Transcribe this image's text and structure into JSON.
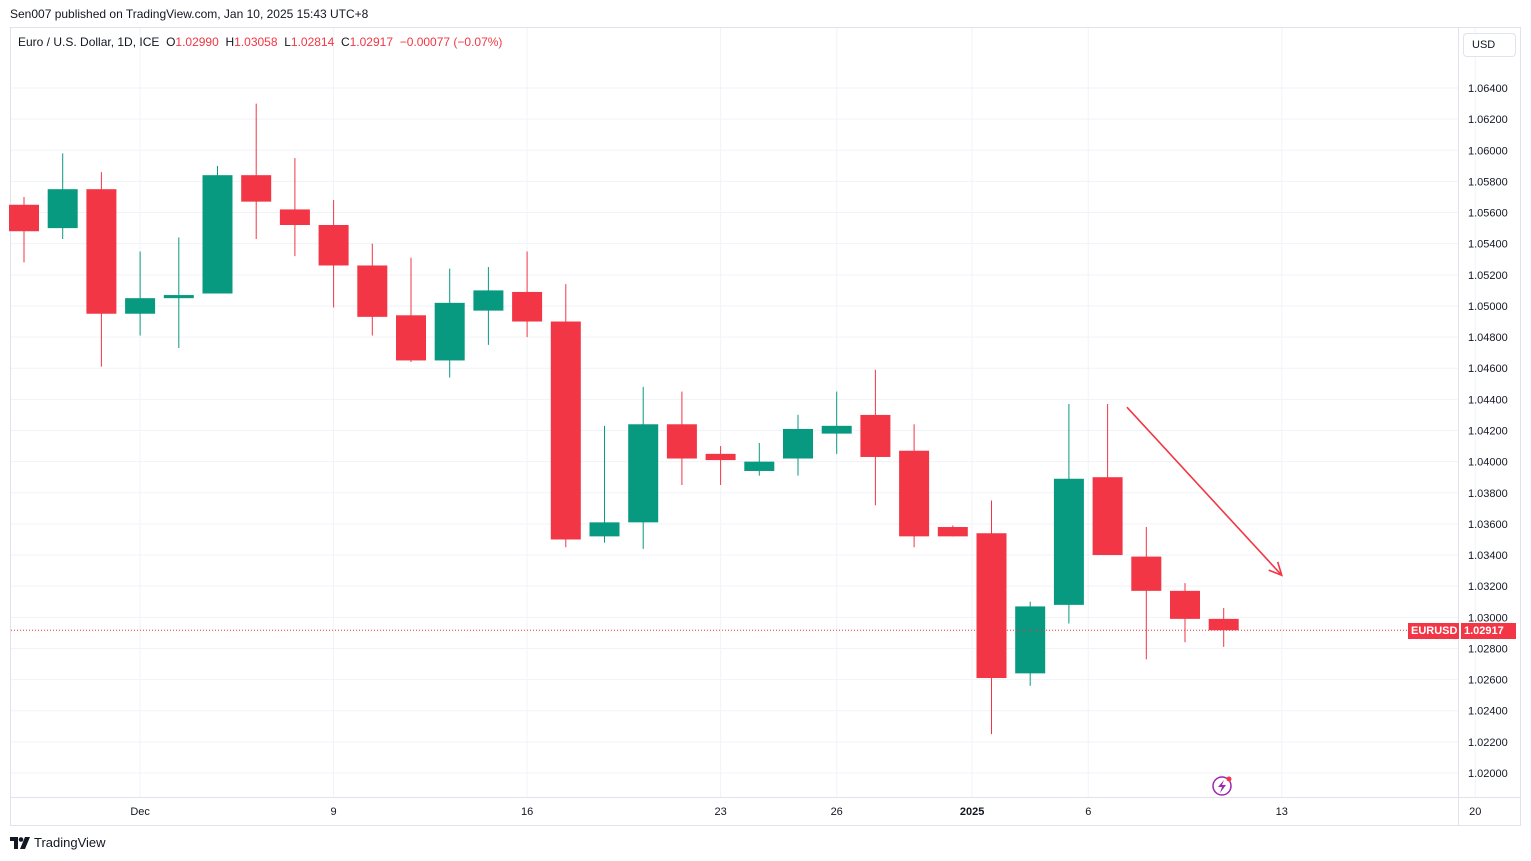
{
  "header": {
    "published_by": "Sen007 published on TradingView.com, Jan 10, 2025 15:43 UTC+8"
  },
  "legend": {
    "symbol": "Euro / U.S. Dollar, 1D, ICE",
    "open_label": "O",
    "open_value": "1.02990",
    "high_label": "H",
    "high_value": "1.03058",
    "low_label": "L",
    "low_value": "1.02814",
    "close_label": "C",
    "close_value": "1.02917",
    "change": "−0.00077 (−0.07%)"
  },
  "currency_button": "USD",
  "price_tag": {
    "symbol": "EURUSD",
    "value": "1.02917"
  },
  "footer": {
    "brand": "TradingView"
  },
  "colors": {
    "up": "#089981",
    "down": "#f23645",
    "grid": "#f0f3fa",
    "axis_text": "#131722"
  },
  "chart_data": {
    "type": "candlestick",
    "y_axis": {
      "range": [
        1.0192,
        1.0668
      ],
      "ticks": [
        "1.02000",
        "1.02200",
        "1.02400",
        "1.02600",
        "1.02800",
        "1.03000",
        "1.03200",
        "1.03400",
        "1.03600",
        "1.03800",
        "1.04000",
        "1.04200",
        "1.04400",
        "1.04600",
        "1.04800",
        "1.05000",
        "1.05200",
        "1.05400",
        "1.05600",
        "1.05800",
        "1.06000",
        "1.06200",
        "1.06400"
      ]
    },
    "x_axis": {
      "ticks": [
        {
          "label": "Dec",
          "index": 3
        },
        {
          "label": "9",
          "index": 8
        },
        {
          "label": "16",
          "index": 13
        },
        {
          "label": "23",
          "index": 18
        },
        {
          "label": "26",
          "index": 21
        },
        {
          "label": "2025",
          "index": 24.5,
          "bold": true
        },
        {
          "label": "6",
          "index": 27.5
        },
        {
          "label": "13",
          "index": 32.5
        },
        {
          "label": "20",
          "index": 37.5
        }
      ]
    },
    "candles": [
      {
        "o": 1.0565,
        "h": 1.057,
        "l": 1.0528,
        "c": 1.0548
      },
      {
        "o": 1.055,
        "h": 1.0598,
        "l": 1.0543,
        "c": 1.0575
      },
      {
        "o": 1.0575,
        "h": 1.0586,
        "l": 1.0461,
        "c": 1.0495
      },
      {
        "o": 1.0495,
        "h": 1.0535,
        "l": 1.0481,
        "c": 1.0505
      },
      {
        "o": 1.0505,
        "h": 1.0544,
        "l": 1.0473,
        "c": 1.0507
      },
      {
        "o": 1.0508,
        "h": 1.059,
        "l": 1.0508,
        "c": 1.0584
      },
      {
        "o": 1.0584,
        "h": 1.063,
        "l": 1.0543,
        "c": 1.0567
      },
      {
        "o": 1.0562,
        "h": 1.0595,
        "l": 1.0532,
        "c": 1.0552
      },
      {
        "o": 1.0552,
        "h": 1.0568,
        "l": 1.0499,
        "c": 1.0526
      },
      {
        "o": 1.0526,
        "h": 1.054,
        "l": 1.0481,
        "c": 1.0493
      },
      {
        "o": 1.0494,
        "h": 1.0531,
        "l": 1.0464,
        "c": 1.0465
      },
      {
        "o": 1.0465,
        "h": 1.0524,
        "l": 1.0454,
        "c": 1.0502
      },
      {
        "o": 1.0497,
        "h": 1.0525,
        "l": 1.0475,
        "c": 1.051
      },
      {
        "o": 1.0509,
        "h": 1.0535,
        "l": 1.048,
        "c": 1.049
      },
      {
        "o": 1.049,
        "h": 1.0514,
        "l": 1.0345,
        "c": 1.035
      },
      {
        "o": 1.0352,
        "h": 1.0423,
        "l": 1.0348,
        "c": 1.0361
      },
      {
        "o": 1.0361,
        "h": 1.0448,
        "l": 1.0344,
        "c": 1.0424
      },
      {
        "o": 1.0424,
        "h": 1.0445,
        "l": 1.0385,
        "c": 1.0402
      },
      {
        "o": 1.0405,
        "h": 1.041,
        "l": 1.0385,
        "c": 1.0401
      },
      {
        "o": 1.0394,
        "h": 1.0412,
        "l": 1.0391,
        "c": 1.04
      },
      {
        "o": 1.0402,
        "h": 1.043,
        "l": 1.0391,
        "c": 1.0421
      },
      {
        "o": 1.0418,
        "h": 1.0445,
        "l": 1.0405,
        "c": 1.0423
      },
      {
        "o": 1.043,
        "h": 1.0459,
        "l": 1.0372,
        "c": 1.0403
      },
      {
        "o": 1.0407,
        "h": 1.0424,
        "l": 1.0345,
        "c": 1.0352
      },
      {
        "o": 1.0358,
        "h": 1.0359,
        "l": 1.0352,
        "c": 1.0352
      },
      {
        "o": 1.0354,
        "h": 1.0375,
        "l": 1.0225,
        "c": 1.0261
      },
      {
        "o": 1.0264,
        "h": 1.031,
        "l": 1.0256,
        "c": 1.0307
      },
      {
        "o": 1.0308,
        "h": 1.0437,
        "l": 1.0296,
        "c": 1.0389
      },
      {
        "o": 1.039,
        "h": 1.0437,
        "l": 1.034,
        "c": 1.034
      },
      {
        "o": 1.0339,
        "h": 1.0358,
        "l": 1.0273,
        "c": 1.0317
      },
      {
        "o": 1.0317,
        "h": 1.0322,
        "l": 1.0284,
        "c": 1.0299
      },
      {
        "o": 1.0299,
        "h": 1.0306,
        "l": 1.0281,
        "c": 1.02917
      }
    ],
    "last_price": 1.02917,
    "annotation": {
      "type": "arrow",
      "from": {
        "index": 28.5,
        "value": 1.0435
      },
      "to": {
        "index": 32.5,
        "value": 1.0327
      }
    }
  }
}
